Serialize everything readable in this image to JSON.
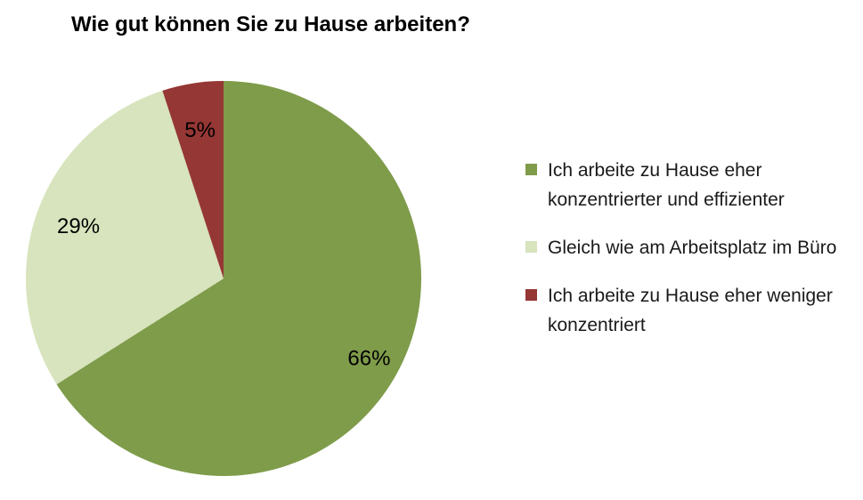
{
  "chart_data": {
    "type": "pie",
    "title": "Wie gut können Sie zu Hause arbeiten?",
    "slices": [
      {
        "label": "Ich arbeite zu Hause eher konzentrierter und effizienter",
        "value": 66,
        "display": "66%",
        "color": "#7f9c4a"
      },
      {
        "label": "Gleich wie am Arbeitsplatz im Büro",
        "value": 29,
        "display": "29%",
        "color": "#d7e4bd"
      },
      {
        "label": "Ich arbeite zu Hause eher weniger konzentriert",
        "value": 5,
        "display": "5%",
        "color": "#953735"
      }
    ],
    "legend_position": "right",
    "start_angle": "12 o'clock",
    "direction": "clockwise"
  }
}
